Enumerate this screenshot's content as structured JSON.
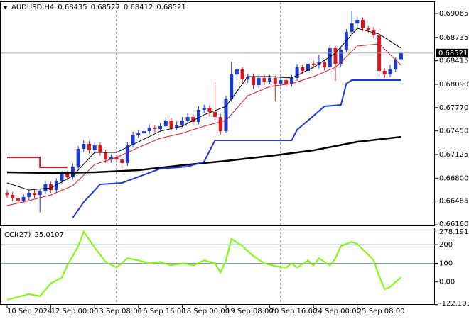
{
  "chart_data": [
    {
      "type": "candlestick",
      "title": "AUDUSD,H4",
      "up_color": "#1c39d4",
      "down_color": "#e0141e",
      "ylim": [
        0.6615,
        0.69221
      ],
      "yticks": [
        0.69065,
        0.68735,
        0.68415,
        {
          "value": 0.6809,
          "label": "0.68090"
        },
        {
          "value": 0.6777,
          "label": "0.67770"
        },
        {
          "value": 0.6745,
          "label": "0.67450"
        },
        0.67125,
        {
          "value": 0.668,
          "label": "0.66800"
        },
        0.66485,
        {
          "value": 0.6616,
          "label": "0.66160"
        }
      ],
      "xticks": [
        {
          "value": 0,
          "label": "10 Sep 2024"
        },
        {
          "value": 8,
          "label": "12 Sep 00:00"
        },
        {
          "value": 16,
          "label": "13 Sep 08:00"
        },
        {
          "value": 24,
          "label": "16 Sep 16:00"
        },
        {
          "value": 32,
          "label": "18 Sep 00:00"
        },
        {
          "value": 40,
          "label": "19 Sep 08:00"
        },
        {
          "value": 48,
          "label": "20 Sep 16:00"
        },
        {
          "value": 56,
          "label": "24 Sep 00:00"
        },
        {
          "value": 64,
          "label": "25 Sep 08:00"
        }
      ],
      "ohlc": [
        [
          0.666,
          0.6664,
          0.6653,
          0.66569
        ],
        [
          0.66569,
          0.6661,
          0.6648,
          0.6652
        ],
        [
          0.6652,
          0.6656,
          0.6645,
          0.66491
        ],
        [
          0.66491,
          0.6658,
          0.6646,
          0.6654
        ],
        [
          0.6654,
          0.6664,
          0.665,
          0.66598
        ],
        [
          0.66598,
          0.6664,
          0.6653,
          0.66569
        ],
        [
          0.66569,
          0.6666,
          0.6633,
          0.66618
        ],
        [
          0.66618,
          0.6676,
          0.6658,
          0.66715
        ],
        [
          0.66715,
          0.6675,
          0.666,
          0.66637
        ],
        [
          0.66637,
          0.668,
          0.666,
          0.66764
        ],
        [
          0.66764,
          0.669,
          0.6672,
          0.66861
        ],
        [
          0.66861,
          0.669,
          0.6677,
          0.66813
        ],
        [
          0.66813,
          0.67,
          0.6678,
          0.66959
        ],
        [
          0.66959,
          0.6724,
          0.6692,
          0.67203
        ],
        [
          0.67203,
          0.6732,
          0.6716,
          0.67271
        ],
        [
          0.67271,
          0.6731,
          0.6714,
          0.67183
        ],
        [
          0.67183,
          0.6729,
          0.6714,
          0.67251
        ],
        [
          0.67251,
          0.6729,
          0.6711,
          0.67154
        ],
        [
          0.67154,
          0.6719,
          0.6701,
          0.67056
        ],
        [
          0.67056,
          0.6713,
          0.6701,
          0.67086
        ],
        [
          0.67086,
          0.6712,
          0.6701,
          0.67056
        ],
        [
          0.67056,
          0.671,
          0.6694,
          0.67008
        ],
        [
          0.67008,
          0.6729,
          0.6697,
          0.67251
        ],
        [
          0.67251,
          0.6744,
          0.6722,
          0.67398
        ],
        [
          0.67398,
          0.6746,
          0.6736,
          0.67417
        ],
        [
          0.67417,
          0.6749,
          0.6738,
          0.67446
        ],
        [
          0.67446,
          0.6754,
          0.6741,
          0.67495
        ],
        [
          0.67495,
          0.6753,
          0.6743,
          0.67476
        ],
        [
          0.67476,
          0.6756,
          0.6744,
          0.67515
        ],
        [
          0.67515,
          0.6764,
          0.6748,
          0.67593
        ],
        [
          0.67593,
          0.6763,
          0.6745,
          0.67495
        ],
        [
          0.67495,
          0.6758,
          0.6746,
          0.67534
        ],
        [
          0.67534,
          0.6764,
          0.675,
          0.67593
        ],
        [
          0.67593,
          0.6769,
          0.6756,
          0.67641
        ],
        [
          0.67641,
          0.6768,
          0.6753,
          0.67573
        ],
        [
          0.67573,
          0.6779,
          0.6754,
          0.67739
        ],
        [
          0.67739,
          0.6781,
          0.677,
          0.67768
        ],
        [
          0.67768,
          0.678,
          0.6766,
          0.6771
        ],
        [
          0.6771,
          0.6812,
          0.676,
          0.67641
        ],
        [
          0.67641,
          0.6768,
          0.674,
          0.67446
        ],
        [
          0.67446,
          0.6793,
          0.6742,
          0.67885
        ],
        [
          0.67885,
          0.684,
          0.6785,
          0.68226
        ],
        [
          0.68226,
          0.6833,
          0.6815,
          0.68295
        ],
        [
          0.68295,
          0.6833,
          0.6811,
          0.68158
        ],
        [
          0.68158,
          0.6824,
          0.6811,
          0.68197
        ],
        [
          0.68197,
          0.6824,
          0.6803,
          0.6808
        ],
        [
          0.6808,
          0.6822,
          0.6804,
          0.68178
        ],
        [
          0.68178,
          0.6822,
          0.6808,
          0.68129
        ],
        [
          0.68129,
          0.6822,
          0.6809,
          0.68178
        ],
        [
          0.68178,
          0.6821,
          0.6786,
          0.681
        ],
        [
          0.681,
          0.6819,
          0.6806,
          0.68148
        ],
        [
          0.68148,
          0.6819,
          0.6805,
          0.681
        ],
        [
          0.681,
          0.6822,
          0.6806,
          0.68178
        ],
        [
          0.68178,
          0.6837,
          0.6814,
          0.68324
        ],
        [
          0.68324,
          0.6836,
          0.6823,
          0.68275
        ],
        [
          0.68275,
          0.6842,
          0.6824,
          0.68373
        ],
        [
          0.68373,
          0.6841,
          0.6831,
          0.68353
        ],
        [
          0.68353,
          0.685,
          0.6831,
          0.68392
        ],
        [
          0.68392,
          0.6843,
          0.6828,
          0.68324
        ],
        [
          0.68324,
          0.6863,
          0.6829,
          0.68587
        ],
        [
          0.68587,
          0.6862,
          0.6814,
          0.68373
        ],
        [
          0.68373,
          0.6861,
          0.6833,
          0.68568
        ],
        [
          0.68568,
          0.6885,
          0.6853,
          0.68811
        ],
        [
          0.68811,
          0.691,
          0.6878,
          0.68928
        ],
        [
          0.68928,
          0.6902,
          0.6887,
          0.68977
        ],
        [
          0.68977,
          0.6901,
          0.6882,
          0.6886
        ],
        [
          0.6886,
          0.689,
          0.688,
          0.68841
        ],
        [
          0.68841,
          0.6888,
          0.6872,
          0.68763
        ],
        [
          0.68763,
          0.688,
          0.682,
          0.68275
        ],
        [
          0.68275,
          0.6831,
          0.6818,
          0.68226
        ],
        [
          0.68226,
          0.6836,
          0.6819,
          0.68295
        ],
        [
          0.68295,
          0.6846,
          0.6826,
          0.68435
        ],
        [
          0.68435,
          0.68527,
          0.68412,
          0.68521
        ]
      ],
      "series": [
        {
          "color": "#000000",
          "width": 1,
          "x": [
            0,
            4,
            8,
            12,
            16,
            20,
            24,
            28,
            32,
            36,
            40,
            44,
            48,
            52,
            56,
            60,
            64,
            68,
            72
          ],
          "values": [
            0.66735,
            0.66637,
            0.66666,
            0.66832,
            0.67154,
            0.67154,
            0.673,
            0.67446,
            0.67515,
            0.67671,
            0.67788,
            0.68197,
            0.68197,
            0.68178,
            0.68324,
            0.68519,
            0.6886,
            0.68782,
            0.68587
          ]
        },
        {
          "color": "#e0141e",
          "width": 1,
          "x": [
            0,
            4,
            8,
            12,
            16,
            20,
            24,
            28,
            32,
            36,
            40,
            44,
            48,
            52,
            56,
            60,
            64,
            68,
            72
          ],
          "values": [
            0.66423,
            0.66491,
            0.66569,
            0.66696,
            0.66988,
            0.67086,
            0.67222,
            0.67349,
            0.67417,
            0.67515,
            0.67593,
            0.67934,
            0.68061,
            0.681,
            0.68197,
            0.68324,
            0.68616,
            0.68646,
            0.68353
          ]
        },
        {
          "color": "#000000",
          "width": 2.5,
          "x": [
            0,
            8,
            16,
            24,
            32,
            40,
            48,
            56,
            64,
            72
          ],
          "values": [
            0.66881,
            0.66871,
            0.66881,
            0.6691,
            0.66978,
            0.67037,
            0.67105,
            0.67183,
            0.673,
            0.67368
          ]
        },
        {
          "color": "#1c39d4",
          "width": 2,
          "x": [
            12,
            14,
            17,
            21,
            28,
            33,
            36,
            38,
            52,
            53,
            55,
            58,
            61,
            62,
            63,
            72
          ],
          "values": [
            0.66257,
            0.66471,
            0.66715,
            0.66735,
            0.6693,
            0.66959,
            0.67027,
            0.6732,
            0.6732,
            0.67466,
            0.67593,
            0.67788,
            0.67807,
            0.681,
            0.68148,
            0.68148
          ]
        },
        {
          "color": "#e0141e",
          "width": 2,
          "x": [
            0,
            6,
            6,
            11
          ],
          "values": [
            0.67086,
            0.67086,
            0.66949,
            0.66949
          ]
        }
      ]
    },
    {
      "type": "line",
      "title": "CCI(27)",
      "ylim": [
        -123,
        288
      ],
      "yticks": [
        278.1919,
        200,
        100,
        {
          "value": 0,
          "label": "0.00"
        },
        -122.1035
      ],
      "levels": [
        200,
        100
      ],
      "level_color": "#4682b4",
      "series": [
        {
          "color": "#7cfc00",
          "width": 2,
          "x": [
            0,
            4,
            6,
            8,
            10,
            11,
            13,
            14,
            16,
            18,
            20,
            22,
            24,
            26,
            28,
            30,
            32,
            34,
            36,
            38,
            39,
            40,
            41,
            43,
            45,
            47,
            49,
            51,
            52,
            53,
            55,
            56,
            57,
            59,
            60,
            61,
            63,
            64,
            66,
            67,
            68,
            69,
            70,
            71,
            72
          ],
          "values": [
            -96.2,
            -65.4,
            -76.9,
            -7.7,
            23.1,
            88.5,
            192.3,
            269.2,
            184.6,
            107.7,
            76.9,
            126.9,
            115.4,
            100,
            107.7,
            88.5,
            100,
            88.5,
            115.4,
            100,
            50,
            115.4,
            230.8,
            192.3,
            138.5,
            100,
            84.6,
            76.9,
            100,
            76.9,
            115.4,
            88.5,
            126.9,
            88.5,
            126.9,
            192.3,
            215.4,
            203.8,
            146.2,
            115.4,
            30.8,
            -38.5,
            -26.9,
            0,
            25.0107
          ]
        }
      ]
    }
  ]
}
